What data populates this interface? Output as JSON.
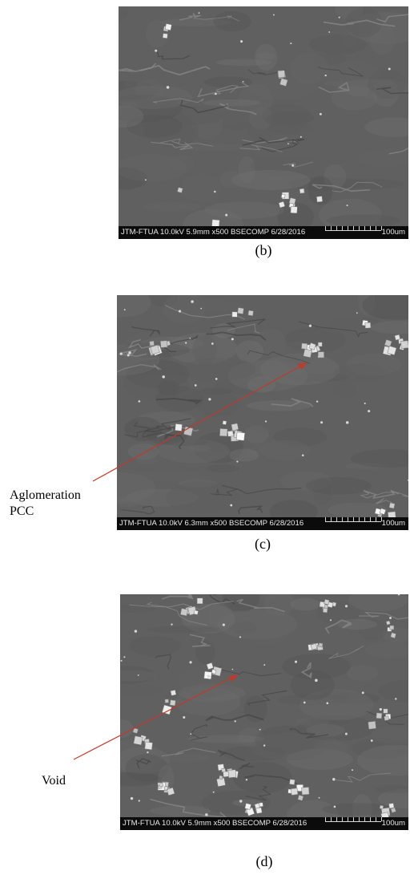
{
  "panels": [
    {
      "id": "b",
      "databar_text": "JTM-FTUA 10.0kV 5.9mm x500 BSECOMP 6/28/2016",
      "scale_text": "100um",
      "caption": "(b)"
    },
    {
      "id": "c",
      "databar_text": "JTM-FTUA 10.0kV 6.3mm x500 BSECOMP 6/28/2016",
      "scale_text": "100um",
      "caption": "(c)"
    },
    {
      "id": "d",
      "databar_text": "JTM-FTUA 10.0kV 5.9mm x500 BSECOMP 6/28/2016",
      "scale_text": "100um",
      "caption": "(d)"
    }
  ],
  "annotations": {
    "aglomeration_line1": "Aglomeration",
    "aglomeration_line2": "PCC",
    "void": "Void",
    "arrow_color": "#c0392b"
  }
}
